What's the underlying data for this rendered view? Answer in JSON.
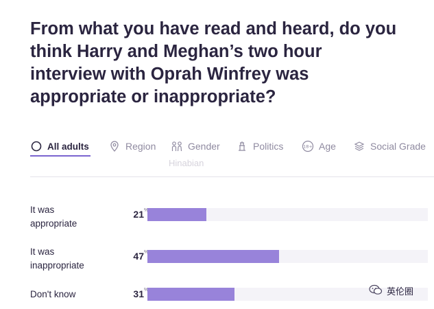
{
  "question": {
    "line1": "From what you have read and heard, do you",
    "line2": "think Harry and Meghan’s two hour",
    "line3": "interview with Oprah Winfrey was",
    "line4": "appropriate or inappropriate?"
  },
  "tabs": [
    {
      "label": "All adults",
      "icon": "circle-icon",
      "active": true
    },
    {
      "label": "Region",
      "icon": "location-pin-icon"
    },
    {
      "label": "Gender",
      "icon": "people-icon"
    },
    {
      "label": "Politics",
      "icon": "building-icon"
    },
    {
      "label": "Age",
      "icon": "age-18-plus-icon"
    },
    {
      "label": "Social Grade",
      "icon": "layers-icon"
    }
  ],
  "watermark": "Hinabian",
  "results": [
    {
      "label_line1": "It was",
      "label_line2": "appropriate",
      "value": 21,
      "display": "21"
    },
    {
      "label_line1": "It was",
      "label_line2": "inappropriate",
      "value": 47,
      "display": "47"
    },
    {
      "label_line1": "Don't know",
      "label_line2": "",
      "value": 31,
      "display": "31"
    }
  ],
  "percent_sign": "%",
  "accent_color": "#9883da",
  "wechat_label": "英伦圈"
}
